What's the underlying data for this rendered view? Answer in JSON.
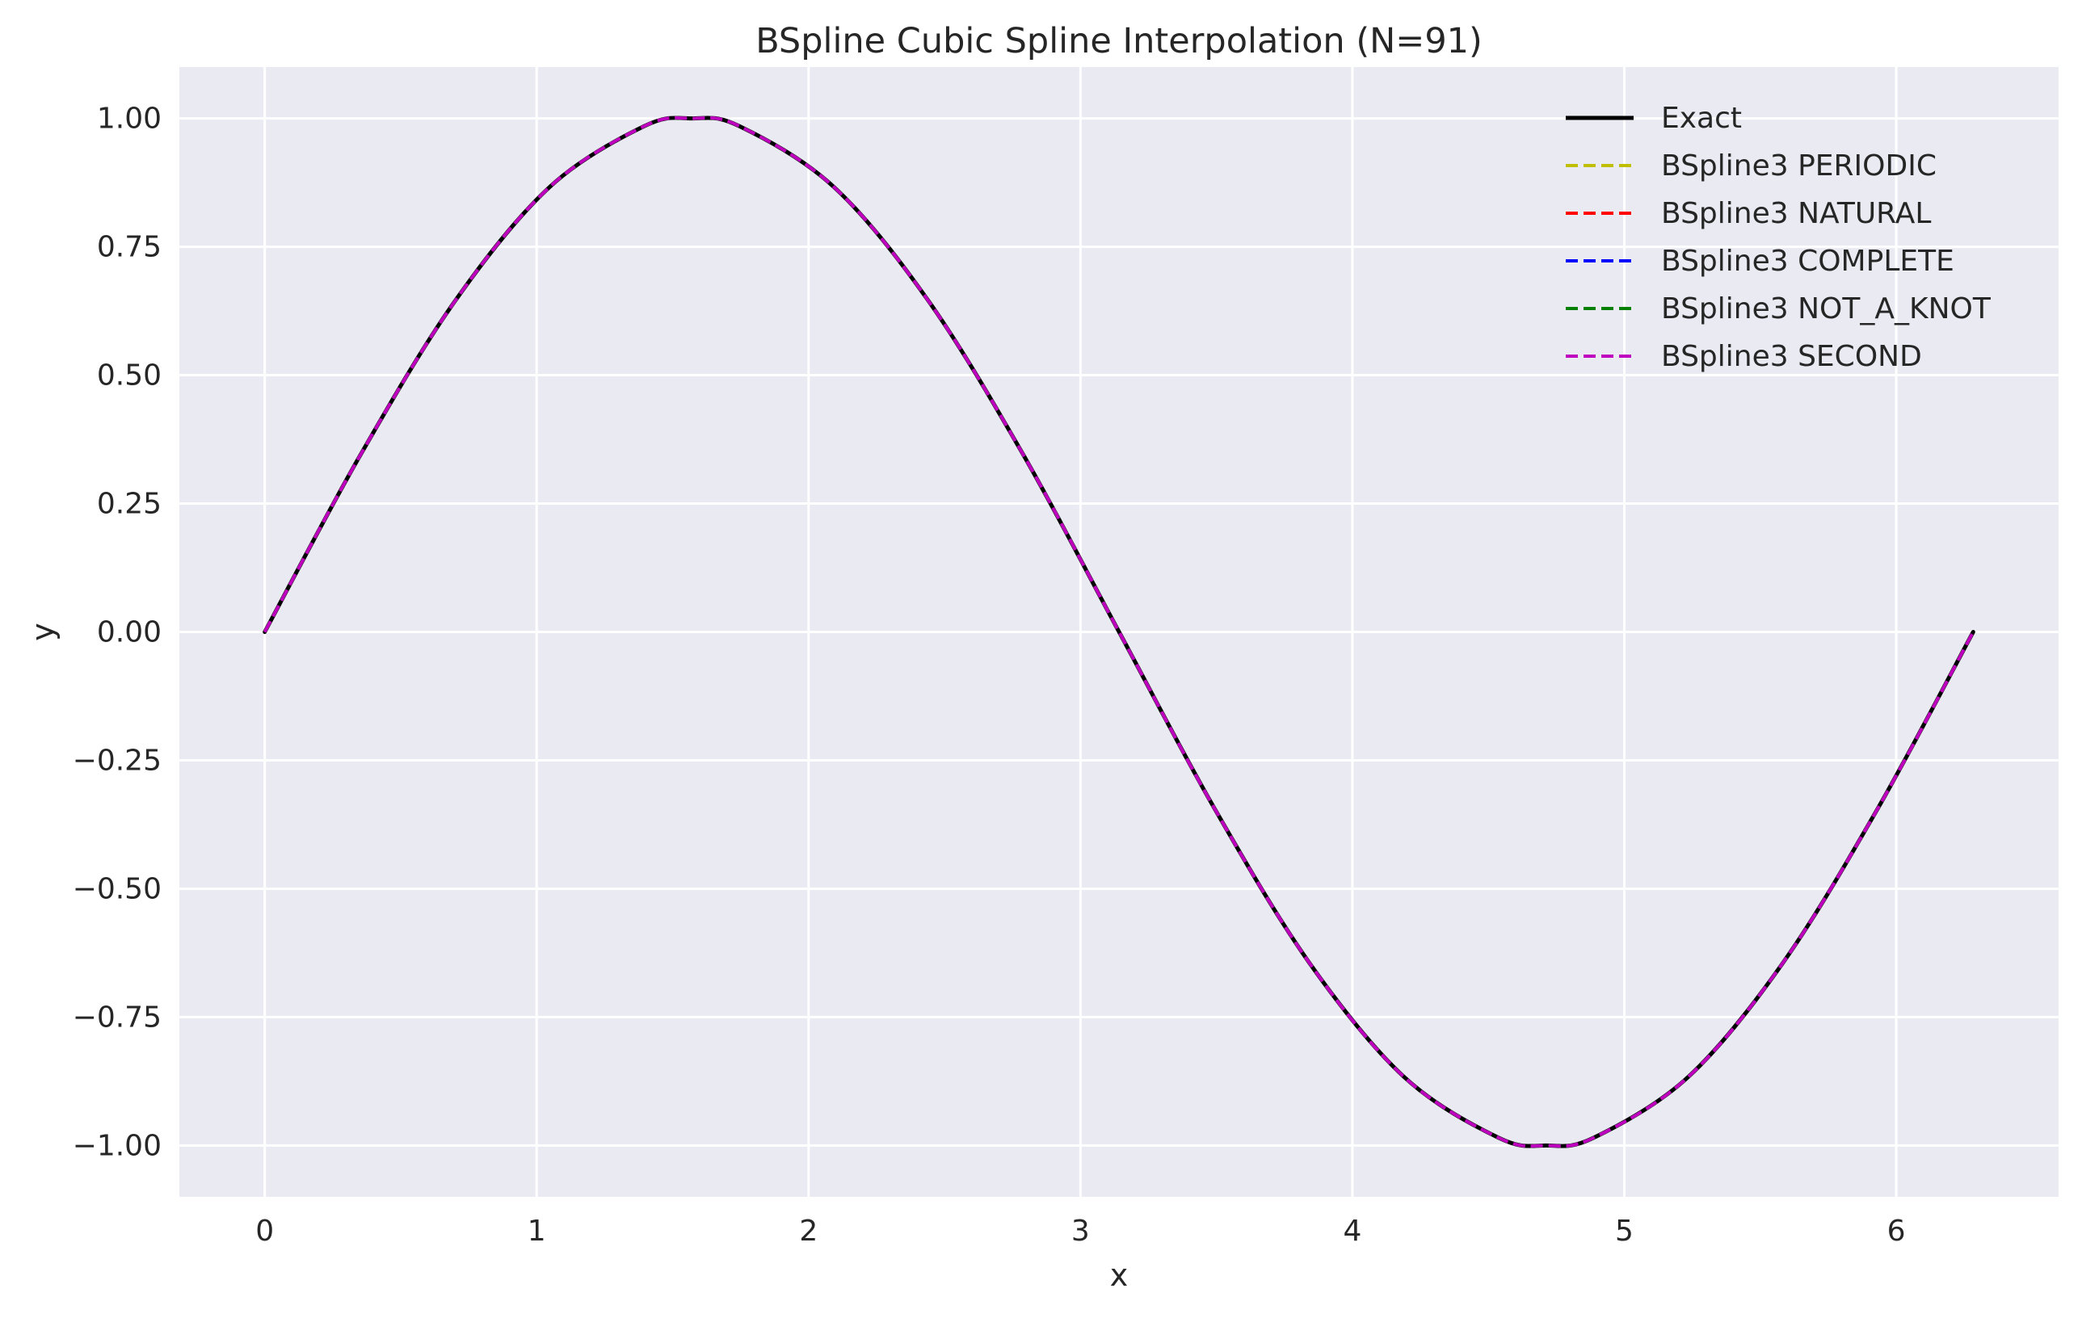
{
  "chart_data": {
    "type": "line",
    "title": "BSpline Cubic Spline Interpolation (N=91)",
    "xlabel": "x",
    "ylabel": "y",
    "xlim": [
      -0.314,
      6.597
    ],
    "ylim": [
      -1.1,
      1.1
    ],
    "xticks": [
      0,
      1,
      2,
      3,
      4,
      5,
      6
    ],
    "xtick_labels": [
      "0",
      "1",
      "2",
      "3",
      "4",
      "5",
      "6"
    ],
    "yticks": [
      1.0,
      0.75,
      0.5,
      0.25,
      0.0,
      -0.25,
      -0.5,
      -0.75,
      -1.0
    ],
    "ytick_labels": [
      "1.00",
      "0.75",
      "0.50",
      "0.25",
      "0.00",
      "−0.25",
      "−0.50",
      "−0.75",
      "−1.00"
    ],
    "grid": true,
    "legend_position": "top-right",
    "background": "#eaeaf2",
    "x": [
      0.0,
      0.349,
      0.698,
      1.047,
      1.396,
      1.571,
      1.745,
      2.094,
      2.443,
      2.793,
      3.142,
      3.491,
      3.84,
      4.189,
      4.538,
      4.712,
      4.887,
      5.236,
      5.585,
      5.934,
      6.283
    ],
    "series": [
      {
        "name": "Exact",
        "color": "#000000",
        "style": "solid",
        "values": [
          0.0,
          0.342,
          0.643,
          0.866,
          0.985,
          1.0,
          0.985,
          0.866,
          0.643,
          0.342,
          0.0,
          -0.342,
          -0.643,
          -0.866,
          -0.985,
          -1.0,
          -0.985,
          -0.866,
          -0.643,
          -0.342,
          0.0
        ]
      },
      {
        "name": "BSpline3 PERIODIC",
        "color": "#bfbf00",
        "style": "dashed",
        "values": [
          0.0,
          0.342,
          0.643,
          0.866,
          0.985,
          1.0,
          0.985,
          0.866,
          0.643,
          0.342,
          0.0,
          -0.342,
          -0.643,
          -0.866,
          -0.985,
          -1.0,
          -0.985,
          -0.866,
          -0.643,
          -0.342,
          0.0
        ]
      },
      {
        "name": "BSpline3 NATURAL",
        "color": "#ff0000",
        "style": "dashed",
        "values": [
          0.0,
          0.342,
          0.643,
          0.866,
          0.985,
          1.0,
          0.985,
          0.866,
          0.643,
          0.342,
          0.0,
          -0.342,
          -0.643,
          -0.866,
          -0.985,
          -1.0,
          -0.985,
          -0.866,
          -0.643,
          -0.342,
          0.0
        ]
      },
      {
        "name": "BSpline3 COMPLETE",
        "color": "#0000ff",
        "style": "dashed",
        "values": [
          0.0,
          0.342,
          0.643,
          0.866,
          0.985,
          1.0,
          0.985,
          0.866,
          0.643,
          0.342,
          0.0,
          -0.342,
          -0.643,
          -0.866,
          -0.985,
          -1.0,
          -0.985,
          -0.866,
          -0.643,
          -0.342,
          0.0
        ]
      },
      {
        "name": "BSpline3 NOT_A_KNOT",
        "color": "#008000",
        "style": "dashed",
        "values": [
          0.0,
          0.342,
          0.643,
          0.866,
          0.985,
          1.0,
          0.985,
          0.866,
          0.643,
          0.342,
          0.0,
          -0.342,
          -0.643,
          -0.866,
          -0.985,
          -1.0,
          -0.985,
          -0.866,
          -0.643,
          -0.342,
          0.0
        ]
      },
      {
        "name": "BSpline3 SECOND",
        "color": "#bf00bf",
        "style": "dashed",
        "values": [
          0.0,
          0.342,
          0.643,
          0.866,
          0.985,
          1.0,
          0.985,
          0.866,
          0.643,
          0.342,
          0.0,
          -0.342,
          -0.643,
          -0.866,
          -0.985,
          -1.0,
          -0.985,
          -0.866,
          -0.643,
          -0.342,
          0.0
        ]
      }
    ]
  }
}
